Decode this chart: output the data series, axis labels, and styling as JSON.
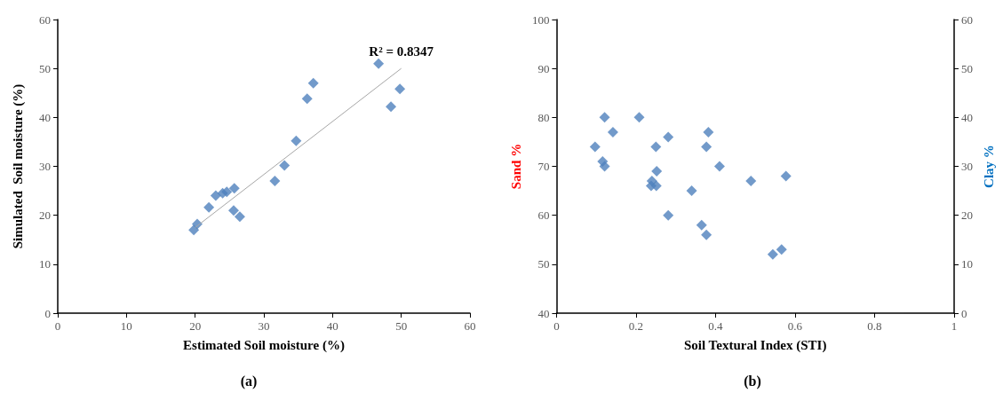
{
  "chart_data": [
    {
      "type": "scatter",
      "xlabel": "Estimated Soil moisture (%)",
      "ylabel": "Simulated  Soil moisture (%)",
      "xlim": [
        0,
        60
      ],
      "xticks": [
        0,
        10,
        20,
        30,
        40,
        50,
        60
      ],
      "ylim": [
        0,
        60
      ],
      "yticks": [
        0,
        10,
        20,
        30,
        40,
        50,
        60
      ],
      "marker": "diamond",
      "annotations": [
        {
          "text": "R² = 0.8347",
          "x": 50,
          "y": 50
        },
        "(a)"
      ],
      "series": [
        {
          "color": "#4f81bd",
          "x": [
            19.8,
            20.3,
            22,
            23,
            24,
            24.6,
            25.7,
            25.6,
            26.5,
            31.6,
            33,
            34.7,
            36.3,
            37.2,
            46.7,
            48.5,
            49.8
          ],
          "values": [
            17,
            18.2,
            21.6,
            24,
            24.5,
            24.8,
            25.5,
            21,
            19.7,
            27,
            30.2,
            35.2,
            43.8,
            47,
            51,
            42.2,
            45.8
          ]
        },
        {
          "type": "line",
          "marker": "none",
          "color": "#a6a6a6",
          "x": [
            20,
            50
          ],
          "values": [
            17.5,
            50
          ]
        }
      ]
    },
    {
      "type": "scatter",
      "xlabel": "Soil Textural Index (STI)",
      "ylabel": "Sand %",
      "y2label": "Clay %",
      "xlim": [
        0,
        1
      ],
      "xticks": [
        0,
        0.2,
        0.4,
        0.6,
        0.8,
        1
      ],
      "ylim": [
        40,
        100
      ],
      "yticks": [
        40,
        50,
        60,
        70,
        80,
        90,
        100
      ],
      "y2lim": [
        0,
        60
      ],
      "y2ticks": [
        0,
        10,
        20,
        30,
        40,
        50,
        60
      ],
      "marker": "diamond",
      "annotations": [
        "(b)"
      ],
      "series": [
        {
          "color": "#4f81bd",
          "x": [
            0.121,
            0.208,
            0.142,
            0.097,
            0.116,
            0.121,
            0.25,
            0.281,
            0.382,
            0.377,
            0.252,
            0.24,
            0.238,
            0.251,
            0.41,
            0.489,
            0.577,
            0.34,
            0.281,
            0.365,
            0.377,
            0.544,
            0.566
          ],
          "values": [
            80,
            80,
            77,
            74,
            71,
            70,
            74,
            76,
            77,
            74,
            69,
            67,
            66,
            66,
            70,
            67,
            68,
            65,
            60,
            58,
            56,
            52,
            53
          ]
        }
      ]
    }
  ]
}
